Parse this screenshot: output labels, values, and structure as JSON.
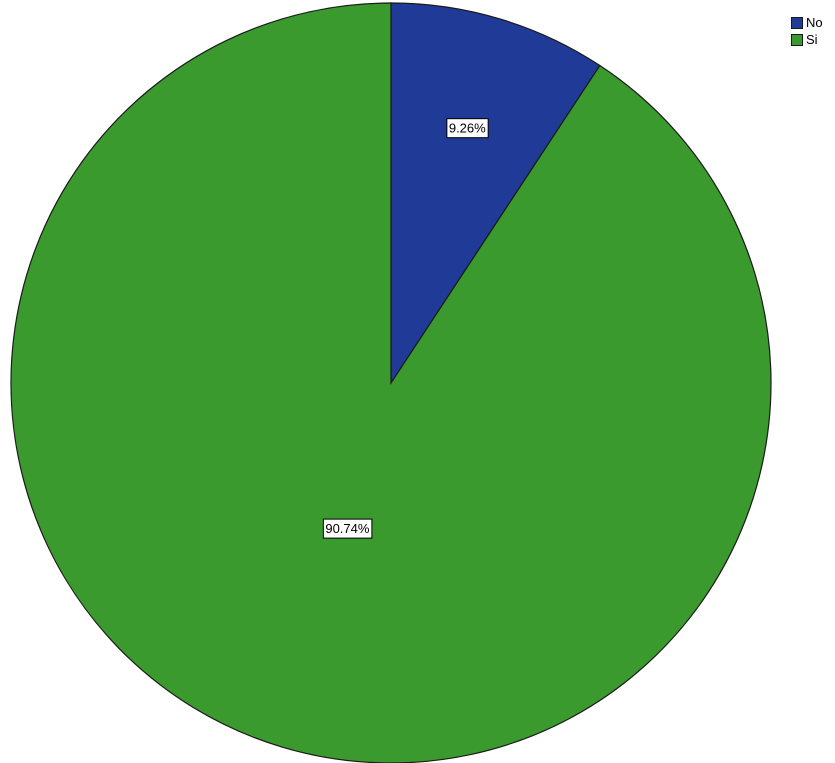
{
  "chart_data": {
    "type": "pie",
    "title": "",
    "slices": [
      {
        "label": "No",
        "value": 9.26,
        "data_label": "9.26%",
        "color": "#1f3b97"
      },
      {
        "label": "Si",
        "value": 90.74,
        "data_label": "90.74%",
        "color": "#3a9a2e"
      }
    ],
    "legend": {
      "placement": "top-right",
      "items": [
        "No",
        "Si"
      ]
    },
    "start_angle": "12 o'clock",
    "direction": "clockwise"
  }
}
